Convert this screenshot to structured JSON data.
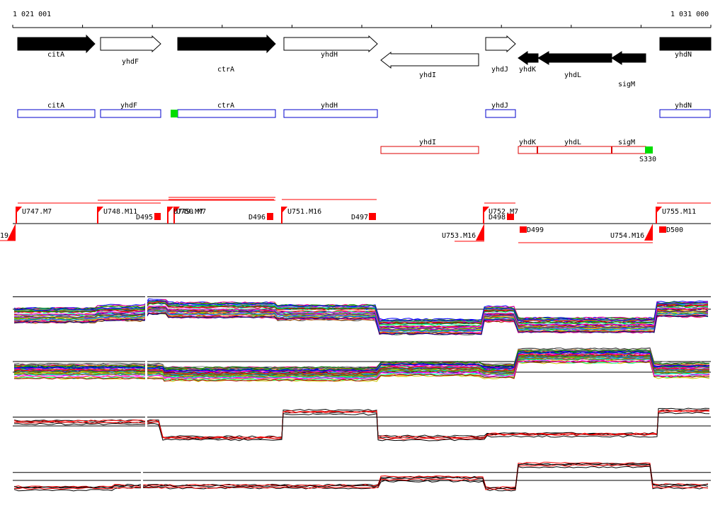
{
  "ruler": {
    "start_label": "1 021 001",
    "end_label": "1 031 000"
  },
  "genes_forward_labels": [
    "citA",
    "yhdF",
    "ctrA",
    "yhdH",
    "yhdJ",
    "yhdN"
  ],
  "genes_reverse_labels": [
    "yhdI",
    "yhdK",
    "yhdL",
    "sigM"
  ],
  "genes": [
    {
      "name": "citA",
      "strand": "+",
      "filled": true
    },
    {
      "name": "yhdF",
      "strand": "+",
      "filled": false
    },
    {
      "name": "ctrA",
      "strand": "+",
      "filled": true
    },
    {
      "name": "yhdH",
      "strand": "+",
      "filled": false
    },
    {
      "name": "yhdI",
      "strand": "-",
      "filled": false
    },
    {
      "name": "yhdJ",
      "strand": "+",
      "filled": false
    },
    {
      "name": "yhdK",
      "strand": "-",
      "filled": true
    },
    {
      "name": "yhdL",
      "strand": "-",
      "filled": true
    },
    {
      "name": "sigM",
      "strand": "-",
      "filled": true
    },
    {
      "name": "yhdN",
      "strand": "+",
      "filled": true
    }
  ],
  "feature_boxes_forward": [
    "citA",
    "yhdF",
    "ctrA",
    "yhdH",
    "yhdJ",
    "yhdN"
  ],
  "feature_boxes_reverse": [
    "yhdI",
    "yhdK",
    "yhdL",
    "sigM"
  ],
  "s_label": "S330",
  "upstream_labels": [
    "U747.M7",
    "U748.M11",
    "U749.M7",
    "U750.M7",
    "U751.M16",
    "U752.M7",
    "U755.M11",
    "U753.M16",
    "U754.M16"
  ],
  "downstream_labels": [
    "D495",
    "D496",
    "D497",
    "D498",
    "D499",
    "D500"
  ],
  "clipped_label": "19",
  "colors": {
    "gene_fill": "#000000",
    "forward_box": "#0000cc",
    "reverse_box": "#dd0000",
    "marker": "#ff0000",
    "highlight": "#00dd00"
  }
}
